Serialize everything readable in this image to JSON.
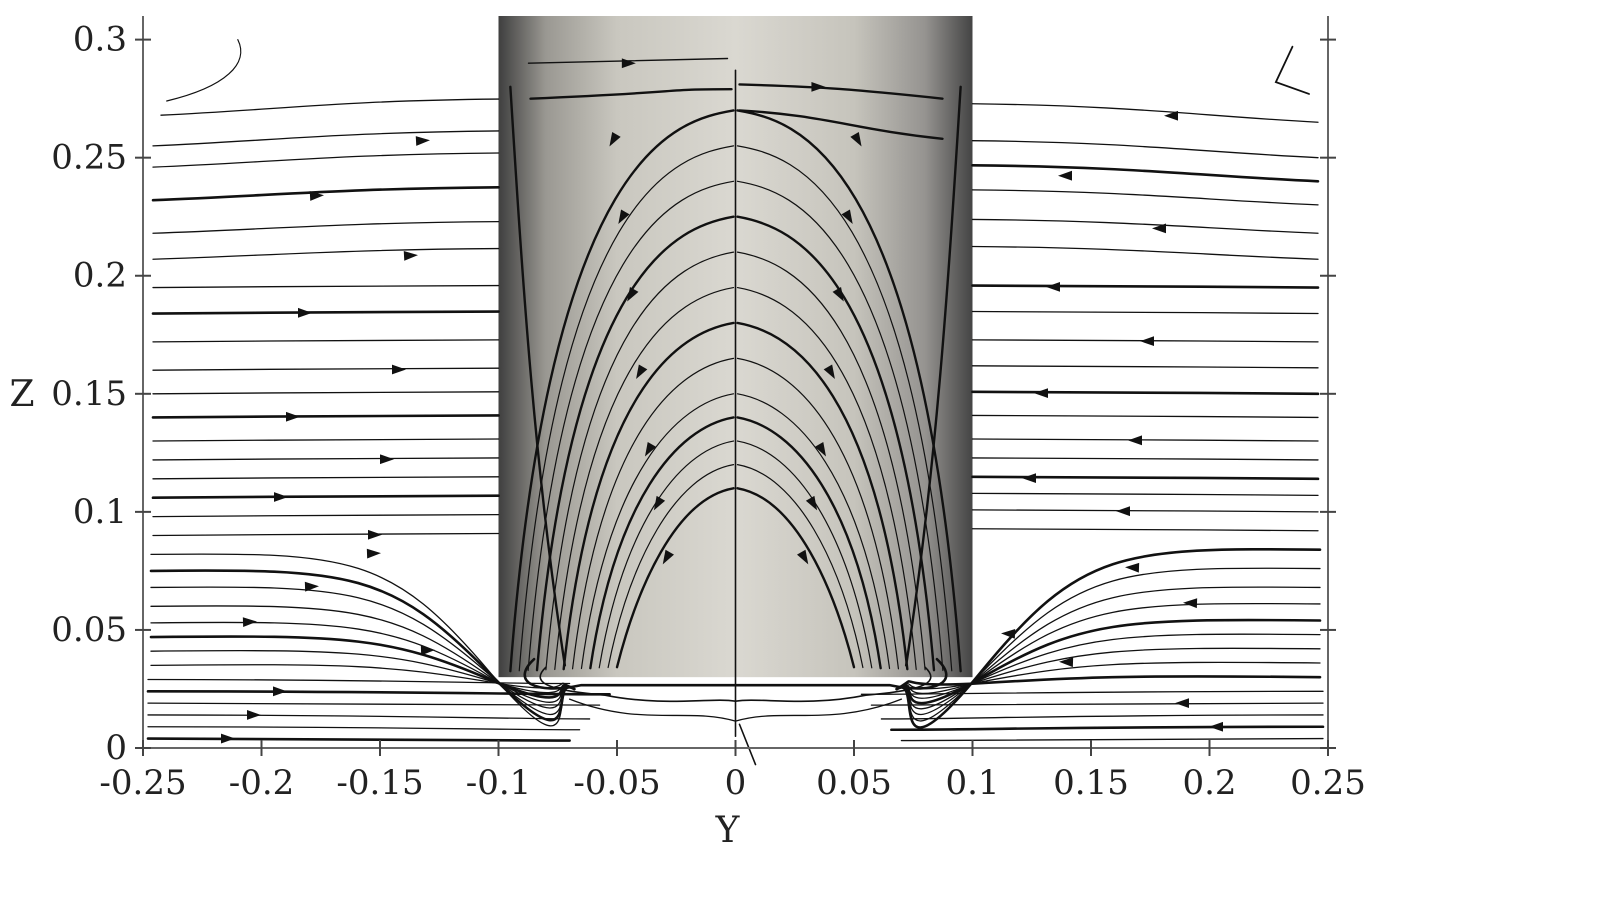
{
  "chart_data": {
    "type": "streamline",
    "xlabel": "Y",
    "ylabel": "Z",
    "xlim": [
      -0.25,
      0.25
    ],
    "ylim": [
      0,
      0.31
    ],
    "x_ticks": [
      -0.25,
      -0.2,
      -0.15,
      -0.1,
      -0.05,
      0,
      0.05,
      0.1,
      0.15,
      0.2,
      0.25
    ],
    "x_tick_labels": [
      "-0.25",
      "-0.2",
      "-0.15",
      "-0.1",
      "-0.05",
      "0",
      "0.05",
      "0.1",
      "0.15",
      "0.2",
      "0.25"
    ],
    "y_ticks": [
      0,
      0.05,
      0.1,
      0.15,
      0.2,
      0.25,
      0.3
    ],
    "y_tick_labels": [
      "0",
      "0.05",
      "0.1",
      "0.15",
      "0.2",
      "0.25",
      "0.3"
    ],
    "cylinder": {
      "y_range": [
        -0.1,
        0.1
      ],
      "z_range": [
        0.03,
        0.31
      ],
      "colors": [
        "#3f3f3f",
        "#d9d7d0"
      ]
    },
    "grid": false,
    "left_streamlines_z": [
      0.004,
      0.009,
      0.014,
      0.019,
      0.024,
      0.029,
      0.035,
      0.041,
      0.047,
      0.053,
      0.06,
      0.068,
      0.075,
      0.082,
      0.09,
      0.098,
      0.106,
      0.114,
      0.122,
      0.13,
      0.14,
      0.15,
      0.16,
      0.172,
      0.184,
      0.195,
      0.207,
      0.218,
      0.232,
      0.246,
      0.255,
      0.268
    ],
    "right_streamlines_z": [
      0.004,
      0.009,
      0.014,
      0.019,
      0.024,
      0.03,
      0.036,
      0.042,
      0.048,
      0.054,
      0.061,
      0.068,
      0.076,
      0.084,
      0.092,
      0.1,
      0.107,
      0.114,
      0.122,
      0.13,
      0.14,
      0.15,
      0.161,
      0.172,
      0.184,
      0.195,
      0.207,
      0.218,
      0.23,
      0.24,
      0.25,
      0.265
    ],
    "cylinder_streamline_start_z": [
      0.27,
      0.255,
      0.24,
      0.225,
      0.21,
      0.195,
      0.18,
      0.165,
      0.15,
      0.14,
      0.13,
      0.12,
      0.11
    ]
  }
}
